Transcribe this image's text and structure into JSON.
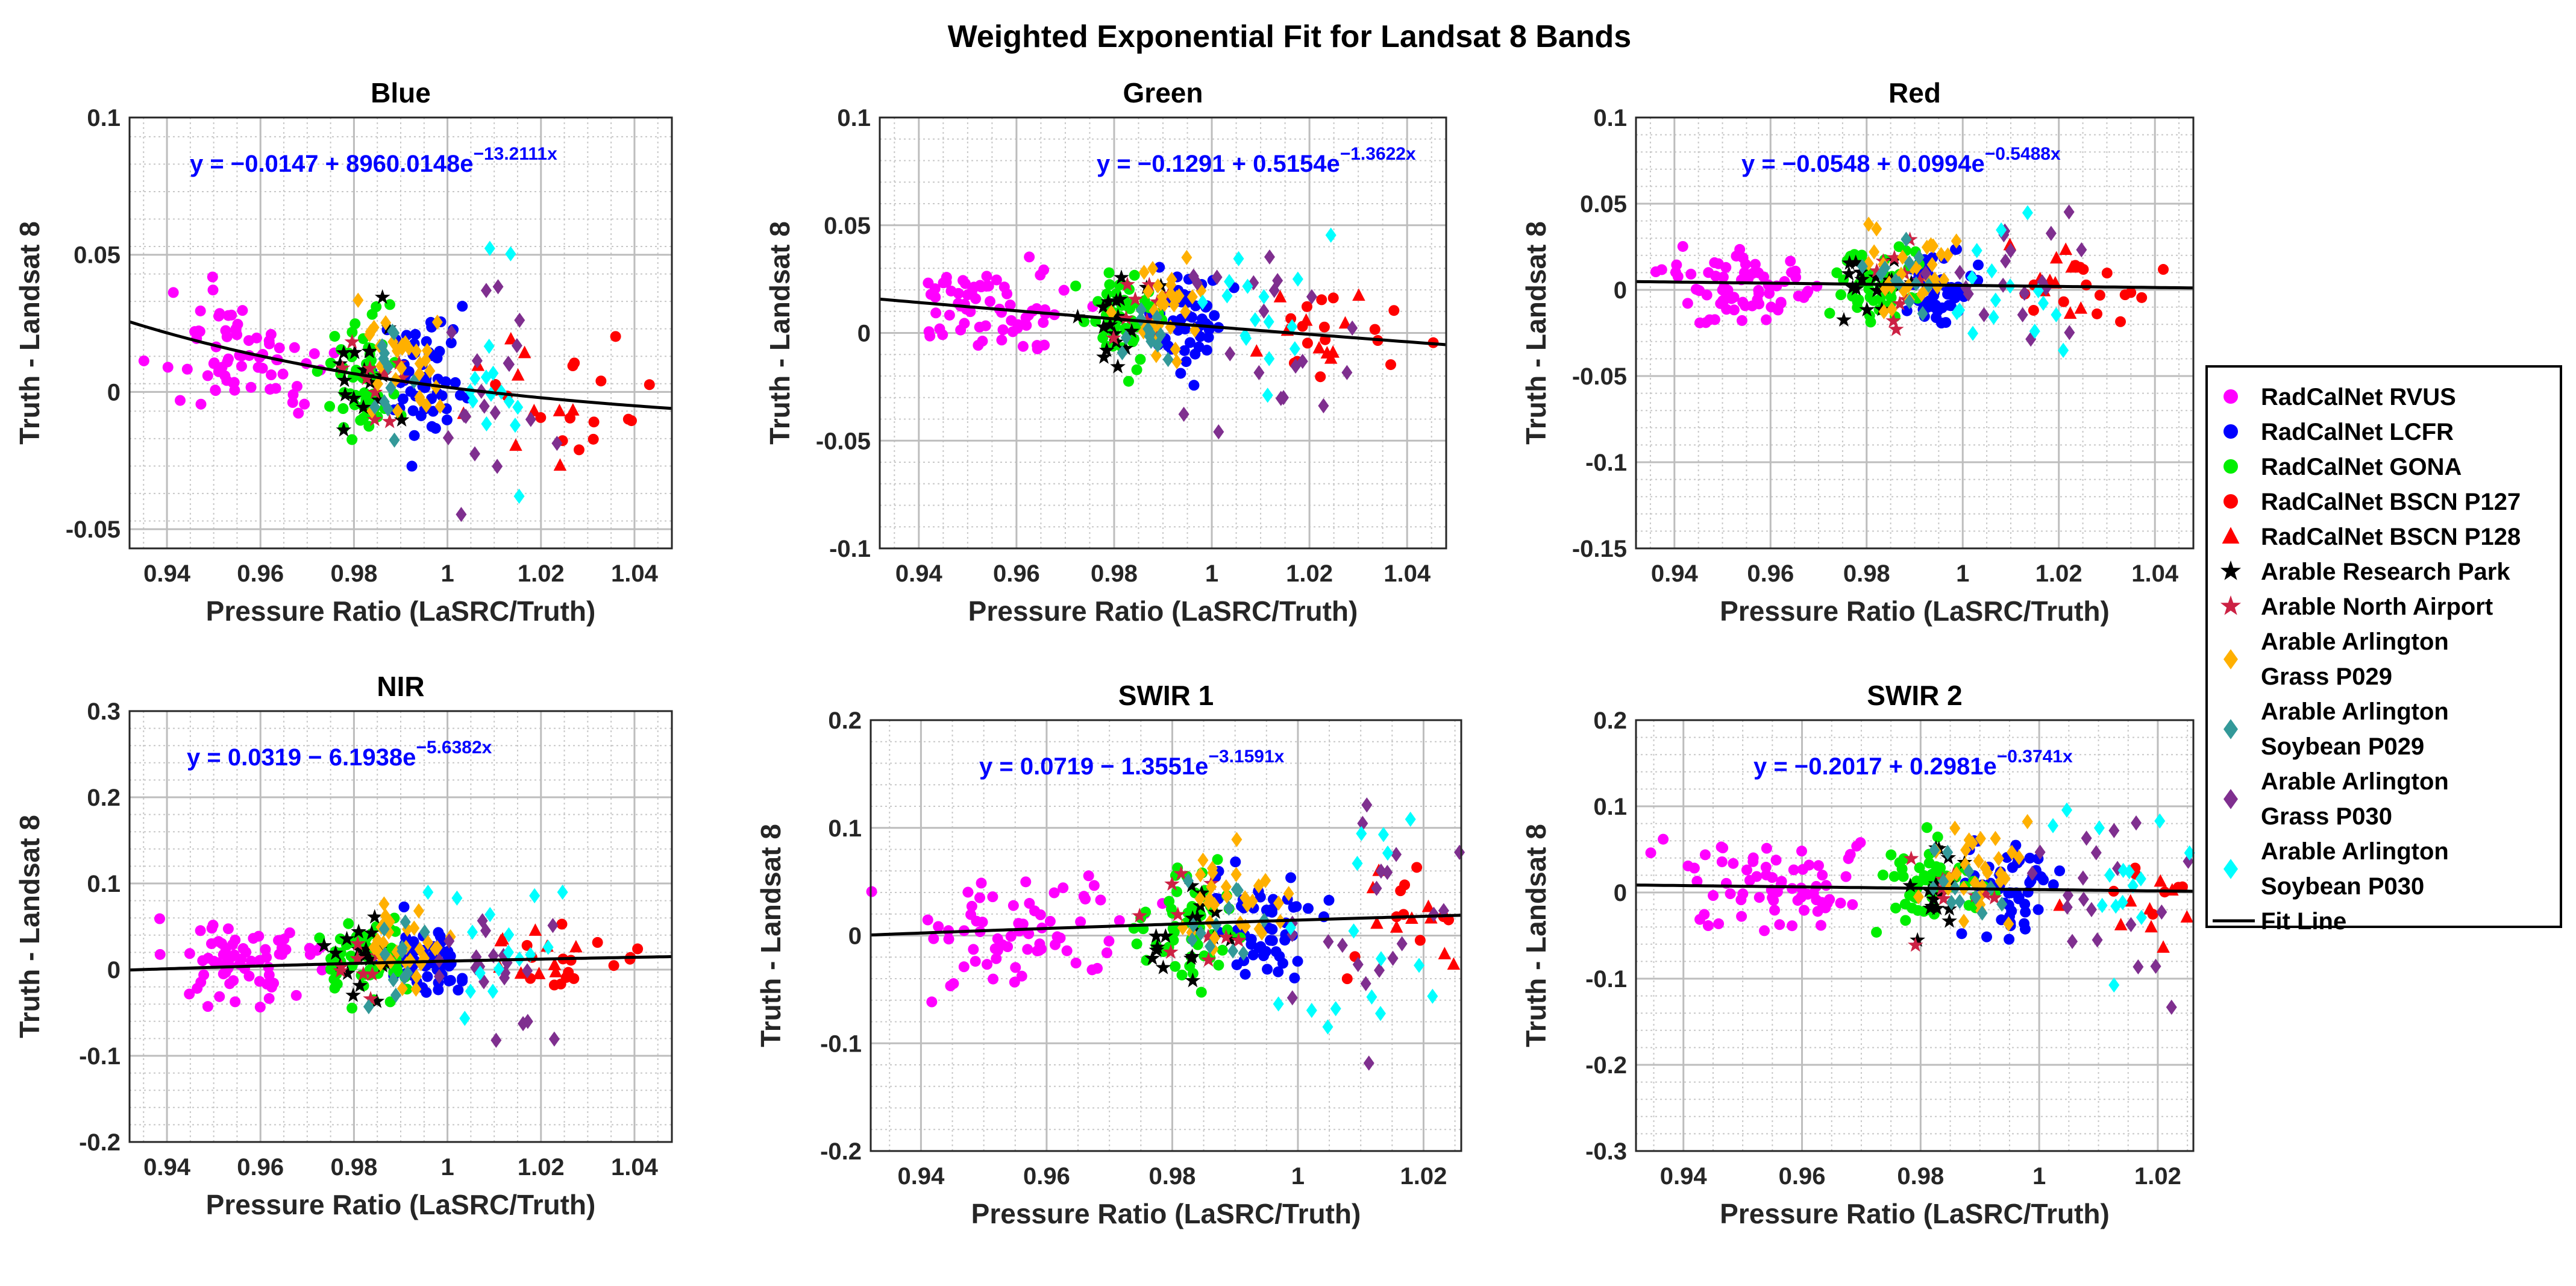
{
  "figure_title": "Weighted Exponential Fit for Landsat 8 Bands",
  "legend_entries": [
    {
      "lines": [
        "RadCalNet RVUS"
      ],
      "marker": "circle",
      "color": "#ff00ff"
    },
    {
      "lines": [
        "RadCalNet LCFR"
      ],
      "marker": "circle",
      "color": "#0000ff"
    },
    {
      "lines": [
        "RadCalNet GONA"
      ],
      "marker": "circle",
      "color": "#00ee00"
    },
    {
      "lines": [
        "RadCalNet BSCN P127"
      ],
      "marker": "circle",
      "color": "#ff0000"
    },
    {
      "lines": [
        "RadCalNet BSCN P128"
      ],
      "marker": "triangle",
      "color": "#ff0000"
    },
    {
      "lines": [
        "Arable Research Park"
      ],
      "marker": "star",
      "color": "#000000"
    },
    {
      "lines": [
        "Arable North Airport"
      ],
      "marker": "star",
      "color": "#cc2244"
    },
    {
      "lines": [
        "Arable Arlington",
        " Grass P029"
      ],
      "marker": "diamond",
      "color": "#ffb000"
    },
    {
      "lines": [
        "Arable Arlington",
        "Soybean P029"
      ],
      "marker": "diamond",
      "color": "#339999"
    },
    {
      "lines": [
        "Arable Arlington",
        "Grass P030"
      ],
      "marker": "diamond",
      "color": "#7f2f8f"
    },
    {
      "lines": [
        "Arable Arlington",
        "Soybean P030"
      ],
      "marker": "diamond",
      "color": "#00ffff"
    },
    {
      "lines": [
        "Fit Line"
      ],
      "marker": "line",
      "color": "#000000"
    }
  ],
  "chart_data": [
    {
      "type": "scatter",
      "title": "Blue",
      "xlabel": "Pressure Ratio (LaSRC/Truth)",
      "ylabel": "Truth - Landsat 8",
      "xlim": [
        0.932,
        1.048
      ],
      "ylim": [
        -0.057,
        0.1
      ],
      "xticks": [
        0.94,
        0.96,
        0.98,
        1,
        1.02,
        1.04
      ],
      "xtick_labels": [
        "0.94",
        "0.96",
        "0.98",
        "1",
        "1.02",
        "1.04"
      ],
      "yticks": [
        -0.05,
        0,
        0.05,
        0.1
      ],
      "ytick_labels": [
        "-0.05",
        "0",
        "0.05",
        "0.1"
      ],
      "fit": {
        "a": -0.0147,
        "b": 8960.0148,
        "c": -13.2111
      },
      "equation": "y = −0.0147 + 8960.0148e",
      "exponent": "−13.2111x"
    },
    {
      "type": "scatter",
      "title": "Green",
      "xlabel": "Pressure Ratio (LaSRC/Truth)",
      "ylabel": "Truth - Landsat 8",
      "xlim": [
        0.932,
        1.048
      ],
      "ylim": [
        -0.1,
        0.1
      ],
      "xticks": [
        0.94,
        0.96,
        0.98,
        1,
        1.02,
        1.04
      ],
      "xtick_labels": [
        "0.94",
        "0.96",
        "0.98",
        "1",
        "1.02",
        "1.04"
      ],
      "yticks": [
        -0.1,
        -0.05,
        0,
        0.05,
        0.1
      ],
      "ytick_labels": [
        "-0.1",
        "-0.05",
        "0",
        "0.05",
        "0.1"
      ],
      "fit": {
        "a": -0.1291,
        "b": 0.5154,
        "c": -1.3622
      },
      "equation": "y = −0.1291 + 0.5154e",
      "exponent": "−1.3622x"
    },
    {
      "type": "scatter",
      "title": "Red",
      "xlabel": "Pressure Ratio (LaSRC/Truth)",
      "ylabel": "Truth - Landsat 8",
      "xlim": [
        0.932,
        1.048
      ],
      "ylim": [
        -0.15,
        0.1
      ],
      "xticks": [
        0.94,
        0.96,
        0.98,
        1,
        1.02,
        1.04
      ],
      "xtick_labels": [
        "0.94",
        "0.96",
        "0.98",
        "1",
        "1.02",
        "1.04"
      ],
      "yticks": [
        -0.15,
        -0.1,
        -0.05,
        0,
        0.05,
        0.1
      ],
      "ytick_labels": [
        "-0.15",
        "-0.1",
        "-0.05",
        "0",
        "0.05",
        "0.1"
      ],
      "fit": {
        "a": -0.0548,
        "b": 0.0994,
        "c": -0.5488
      },
      "equation": "y = −0.0548 + 0.0994e",
      "exponent": "−0.5488x"
    },
    {
      "type": "scatter",
      "title": "NIR",
      "xlabel": "Pressure Ratio (LaSRC/Truth)",
      "ylabel": "Truth - Landsat 8",
      "xlim": [
        0.932,
        1.048
      ],
      "ylim": [
        -0.2,
        0.3
      ],
      "xticks": [
        0.94,
        0.96,
        0.98,
        1,
        1.02,
        1.04
      ],
      "xtick_labels": [
        "0.94",
        "0.96",
        "0.98",
        "1",
        "1.02",
        "1.04"
      ],
      "yticks": [
        -0.2,
        -0.1,
        0,
        0.1,
        0.2,
        0.3
      ],
      "ytick_labels": [
        "-0.2",
        "-0.1",
        "0",
        "0.1",
        "0.2",
        "0.3"
      ],
      "fit": {
        "a": 0.0319,
        "b": -6.1938,
        "c": -5.6382
      },
      "equation": "y = 0.0319 − 6.1938e",
      "exponent": "−5.6382x"
    },
    {
      "type": "scatter",
      "title": "SWIR 1",
      "xlabel": "Pressure Ratio (LaSRC/Truth)",
      "ylabel": "Truth - Landsat 8",
      "xlim": [
        0.932,
        1.026
      ],
      "ylim": [
        -0.2,
        0.2
      ],
      "xticks": [
        0.94,
        0.96,
        0.98,
        1,
        1.02
      ],
      "xtick_labels": [
        "0.94",
        "0.96",
        "0.98",
        "1",
        "1.02"
      ],
      "yticks": [
        -0.2,
        -0.1,
        0,
        0.1,
        0.2
      ],
      "ytick_labels": [
        "-0.2",
        "-0.1",
        "0",
        "0.1",
        "0.2"
      ],
      "fit": {
        "a": 0.0719,
        "b": -1.3551,
        "c": -3.1591
      },
      "equation": "y = 0.0719 − 1.3551e",
      "exponent": "−3.1591x"
    },
    {
      "type": "scatter",
      "title": "SWIR 2",
      "xlabel": "Pressure Ratio (LaSRC/Truth)",
      "ylabel": "Truth - Landsat 8",
      "xlim": [
        0.932,
        1.026
      ],
      "ylim": [
        -0.3,
        0.2
      ],
      "xticks": [
        0.94,
        0.96,
        0.98,
        1,
        1.02
      ],
      "xtick_labels": [
        "0.94",
        "0.96",
        "0.98",
        "1",
        "1.02"
      ],
      "yticks": [
        -0.3,
        -0.2,
        -0.1,
        0,
        0.1,
        0.2
      ],
      "ytick_labels": [
        "-0.3",
        "-0.2",
        "-0.1",
        "0",
        "0.1",
        "0.2"
      ],
      "fit": {
        "a": -0.2017,
        "b": 0.2981,
        "c": -0.3741
      },
      "equation": "y = −0.2017 + 0.2981e",
      "exponent": "−0.3741x"
    }
  ]
}
